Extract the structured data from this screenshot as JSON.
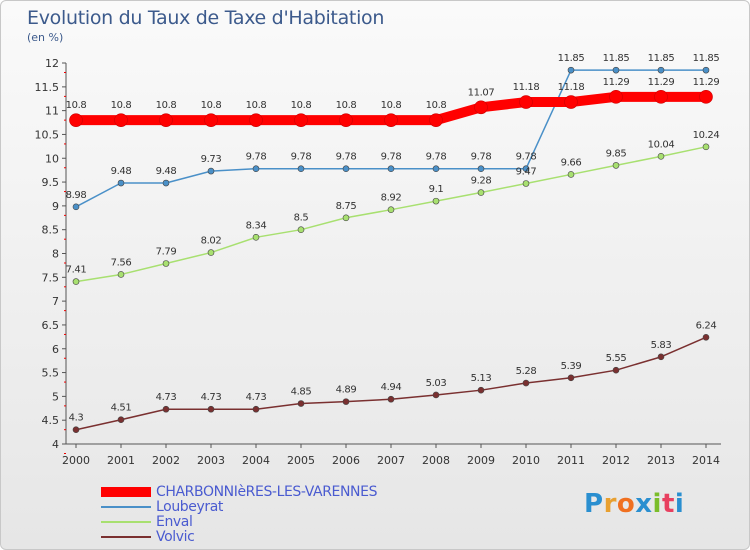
{
  "title": "Evolution du Taux de Taxe d'Habitation",
  "unit": "(en %)",
  "logo": "Proxiti",
  "chart_data": {
    "type": "line",
    "x": [
      "2000",
      "2001",
      "2002",
      "2003",
      "2004",
      "2005",
      "2006",
      "2007",
      "2008",
      "2009",
      "2010",
      "2011",
      "2012",
      "2013",
      "2014"
    ],
    "ylim": [
      4,
      12
    ],
    "yticks": [
      "4",
      "4.5",
      "5",
      "5.5",
      "6",
      "6.5",
      "7",
      "7.5",
      "8",
      "8.5",
      "9",
      "9.5",
      "10",
      "10.5",
      "11",
      "11.5",
      "12"
    ],
    "grid": false,
    "legend_position": "bottom-left",
    "series": [
      {
        "name": "CHARBONNIèRES-LES-VARENNES",
        "color": "#ff0000",
        "width": 10,
        "values": [
          10.8,
          10.8,
          10.8,
          10.8,
          10.8,
          10.8,
          10.8,
          10.8,
          10.8,
          11.07,
          11.18,
          11.18,
          11.29,
          11.29,
          11.29
        ]
      },
      {
        "name": "Loubeyrat",
        "color": "#4a90c8",
        "width": 1.5,
        "values": [
          8.98,
          9.48,
          9.48,
          9.73,
          9.78,
          9.78,
          9.78,
          9.78,
          9.78,
          9.78,
          9.78,
          11.85,
          11.85,
          11.85,
          11.85
        ]
      },
      {
        "name": "Enval",
        "color": "#a8e070",
        "width": 1.5,
        "values": [
          7.41,
          7.56,
          7.79,
          8.02,
          8.34,
          8.5,
          8.75,
          8.92,
          9.1,
          9.28,
          9.47,
          9.66,
          9.85,
          10.04,
          10.24
        ]
      },
      {
        "name": "Volvic",
        "color": "#7a3030",
        "width": 1.5,
        "values": [
          4.3,
          4.51,
          4.73,
          4.73,
          4.73,
          4.85,
          4.89,
          4.94,
          5.03,
          5.13,
          5.28,
          5.39,
          5.55,
          5.83,
          6.24
        ]
      }
    ],
    "data_labels": [
      [
        "10.8",
        "10.8",
        "10.8",
        "10.8",
        "10.8",
        "10.8",
        "10.8",
        "10.8",
        "10.8",
        "11.07",
        "11.18",
        "11.18",
        "11.29",
        "11.29",
        "11.29"
      ],
      [
        "8.98",
        "9.48",
        "9.48",
        "9.73",
        "9.78",
        "9.78",
        "9.78",
        "9.78",
        "9.78",
        "9.78",
        "9.78",
        "11.85",
        "11.85",
        "11.85",
        "11.85"
      ],
      [
        "7.41",
        "7.56",
        "7.79",
        "8.02",
        "8.34",
        "8.5",
        "8.75",
        "8.92",
        "9.1",
        "9.28",
        "9.47",
        "9.66",
        "9.85",
        "10.04",
        "10.24"
      ],
      [
        "4.3",
        "4.51",
        "4.73",
        "4.73",
        "4.73",
        "4.85",
        "4.89",
        "4.94",
        "5.03",
        "5.13",
        "5.28",
        "5.39",
        "5.55",
        "5.83",
        "6.24"
      ]
    ]
  }
}
